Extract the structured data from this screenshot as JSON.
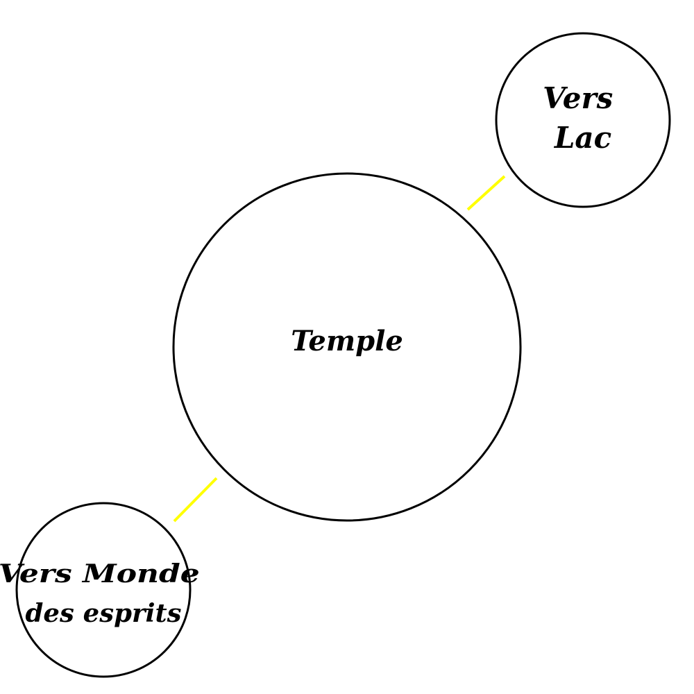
{
  "map": {
    "connector_color": "#ffff00",
    "locations": {
      "temple": {
        "label": "Temple"
      },
      "lake": {
        "label_lines": [
          "Vers",
          "Lac"
        ]
      },
      "spirit_world": {
        "label_lines": [
          "Vers Monde",
          "des esprits"
        ]
      }
    }
  }
}
